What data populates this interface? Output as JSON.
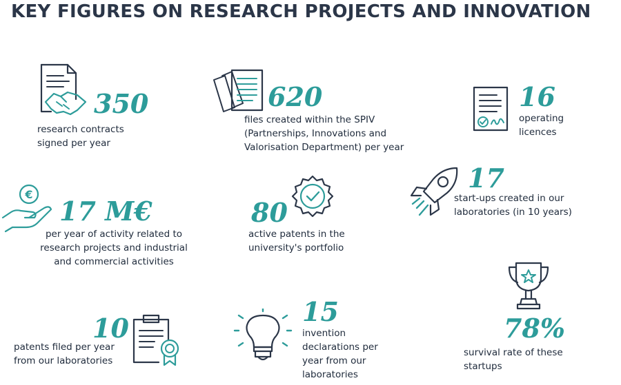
{
  "title": "KEY FIGURES ON RESEARCH PROJECTS AND INNOVATION",
  "accent_color": "#2d9c9a",
  "text_color": "#1e2a3b",
  "stats": [
    {
      "value": "350",
      "lines": [
        "research contracts",
        "signed per year"
      ],
      "icon": "contract-handshake-icon"
    },
    {
      "value": "620",
      "lines": [
        "files created within the SPIV",
        "(Partnerships, Innovations and",
        "Valorisation Department) per year"
      ],
      "icon": "files-stack-icon"
    },
    {
      "value": "16",
      "lines": [
        "operating",
        "licences"
      ],
      "icon": "licence-document-icon"
    },
    {
      "value": "17 M€",
      "lines": [
        "per year of activity related to",
        "research projects and industrial",
        "and commercial activities"
      ],
      "icon": "hand-euro-icon"
    },
    {
      "value": "80",
      "lines": [
        "active patents in the",
        "university's portfolio"
      ],
      "icon": "certified-badge-icon"
    },
    {
      "value": "17",
      "lines": [
        "start-ups created in our",
        "laboratories (in 10 years)"
      ],
      "icon": "rocket-icon"
    },
    {
      "value": "78%",
      "lines": [
        "survival rate of these",
        "startups"
      ],
      "icon": "trophy-icon"
    },
    {
      "value": "10",
      "lines": [
        "patents filed per year",
        "from our laboratories"
      ],
      "icon": "patent-certificate-icon"
    },
    {
      "value": "15",
      "lines": [
        "invention",
        "declarations per",
        "year from our",
        "laboratories"
      ],
      "icon": "lightbulb-icon"
    }
  ]
}
